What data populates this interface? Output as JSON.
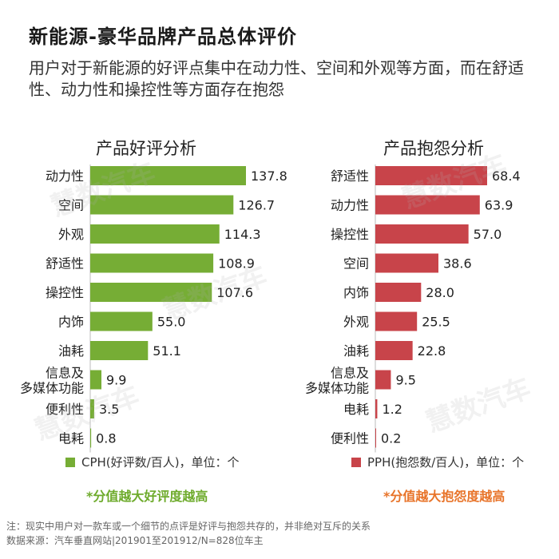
{
  "title": "新能源-豪华品牌产品总体评价",
  "subtitle": "用户对于新能源的好评点集中在动力性、空间和外观等方面，而在舒适性、动力性和操控性等方面存在抱怨",
  "watermark": "慧数汽车",
  "colors": {
    "positive": "#76ad35",
    "negative": "#c8444a",
    "positive_note": "#6eab2c",
    "negative_note": "#e8742a"
  },
  "chart_data": [
    {
      "type": "bar",
      "orientation": "horizontal",
      "title": "产品好评分析",
      "categories": [
        "动力性",
        "空间",
        "外观",
        "舒适性",
        "操控性",
        "内饰",
        "油耗",
        "信息及多媒体功能",
        "便利性",
        "电耗"
      ],
      "values": [
        137.8,
        126.7,
        114.3,
        108.9,
        107.6,
        55.0,
        51.1,
        9.9,
        3.5,
        0.8
      ],
      "value_labels": [
        "137.8",
        "126.7",
        "114.3",
        "108.9",
        "107.6",
        "55.0",
        "51.1",
        "9.9",
        "3.5",
        "0.8"
      ],
      "legend": "CPH(好评数/百人)，单位：个",
      "note": "*分值越大好评度越高"
    },
    {
      "type": "bar",
      "orientation": "horizontal",
      "title": "产品抱怨分析",
      "categories": [
        "舒适性",
        "动力性",
        "操控性",
        "空间",
        "内饰",
        "外观",
        "油耗",
        "信息及多媒体功能",
        "电耗",
        "便利性"
      ],
      "values": [
        68.4,
        63.9,
        57.0,
        38.6,
        28.0,
        25.5,
        22.8,
        9.5,
        1.2,
        0.2
      ],
      "value_labels": [
        "68.4",
        "63.9",
        "57.0",
        "38.6",
        "28.0",
        "25.5",
        "22.8",
        "9.5",
        "1.2",
        "0.2"
      ],
      "legend": "PPH(抱怨数/百人)，单位：个",
      "note": "*分值越大抱怨度越高"
    }
  ],
  "footnotes": [
    "注：现实中用户对一款车或一个细节的点评是好评与抱怨共存的，并非绝对互斥的关系",
    "数据来源：汽车垂直网站|201901至201912/N=828位车主"
  ]
}
